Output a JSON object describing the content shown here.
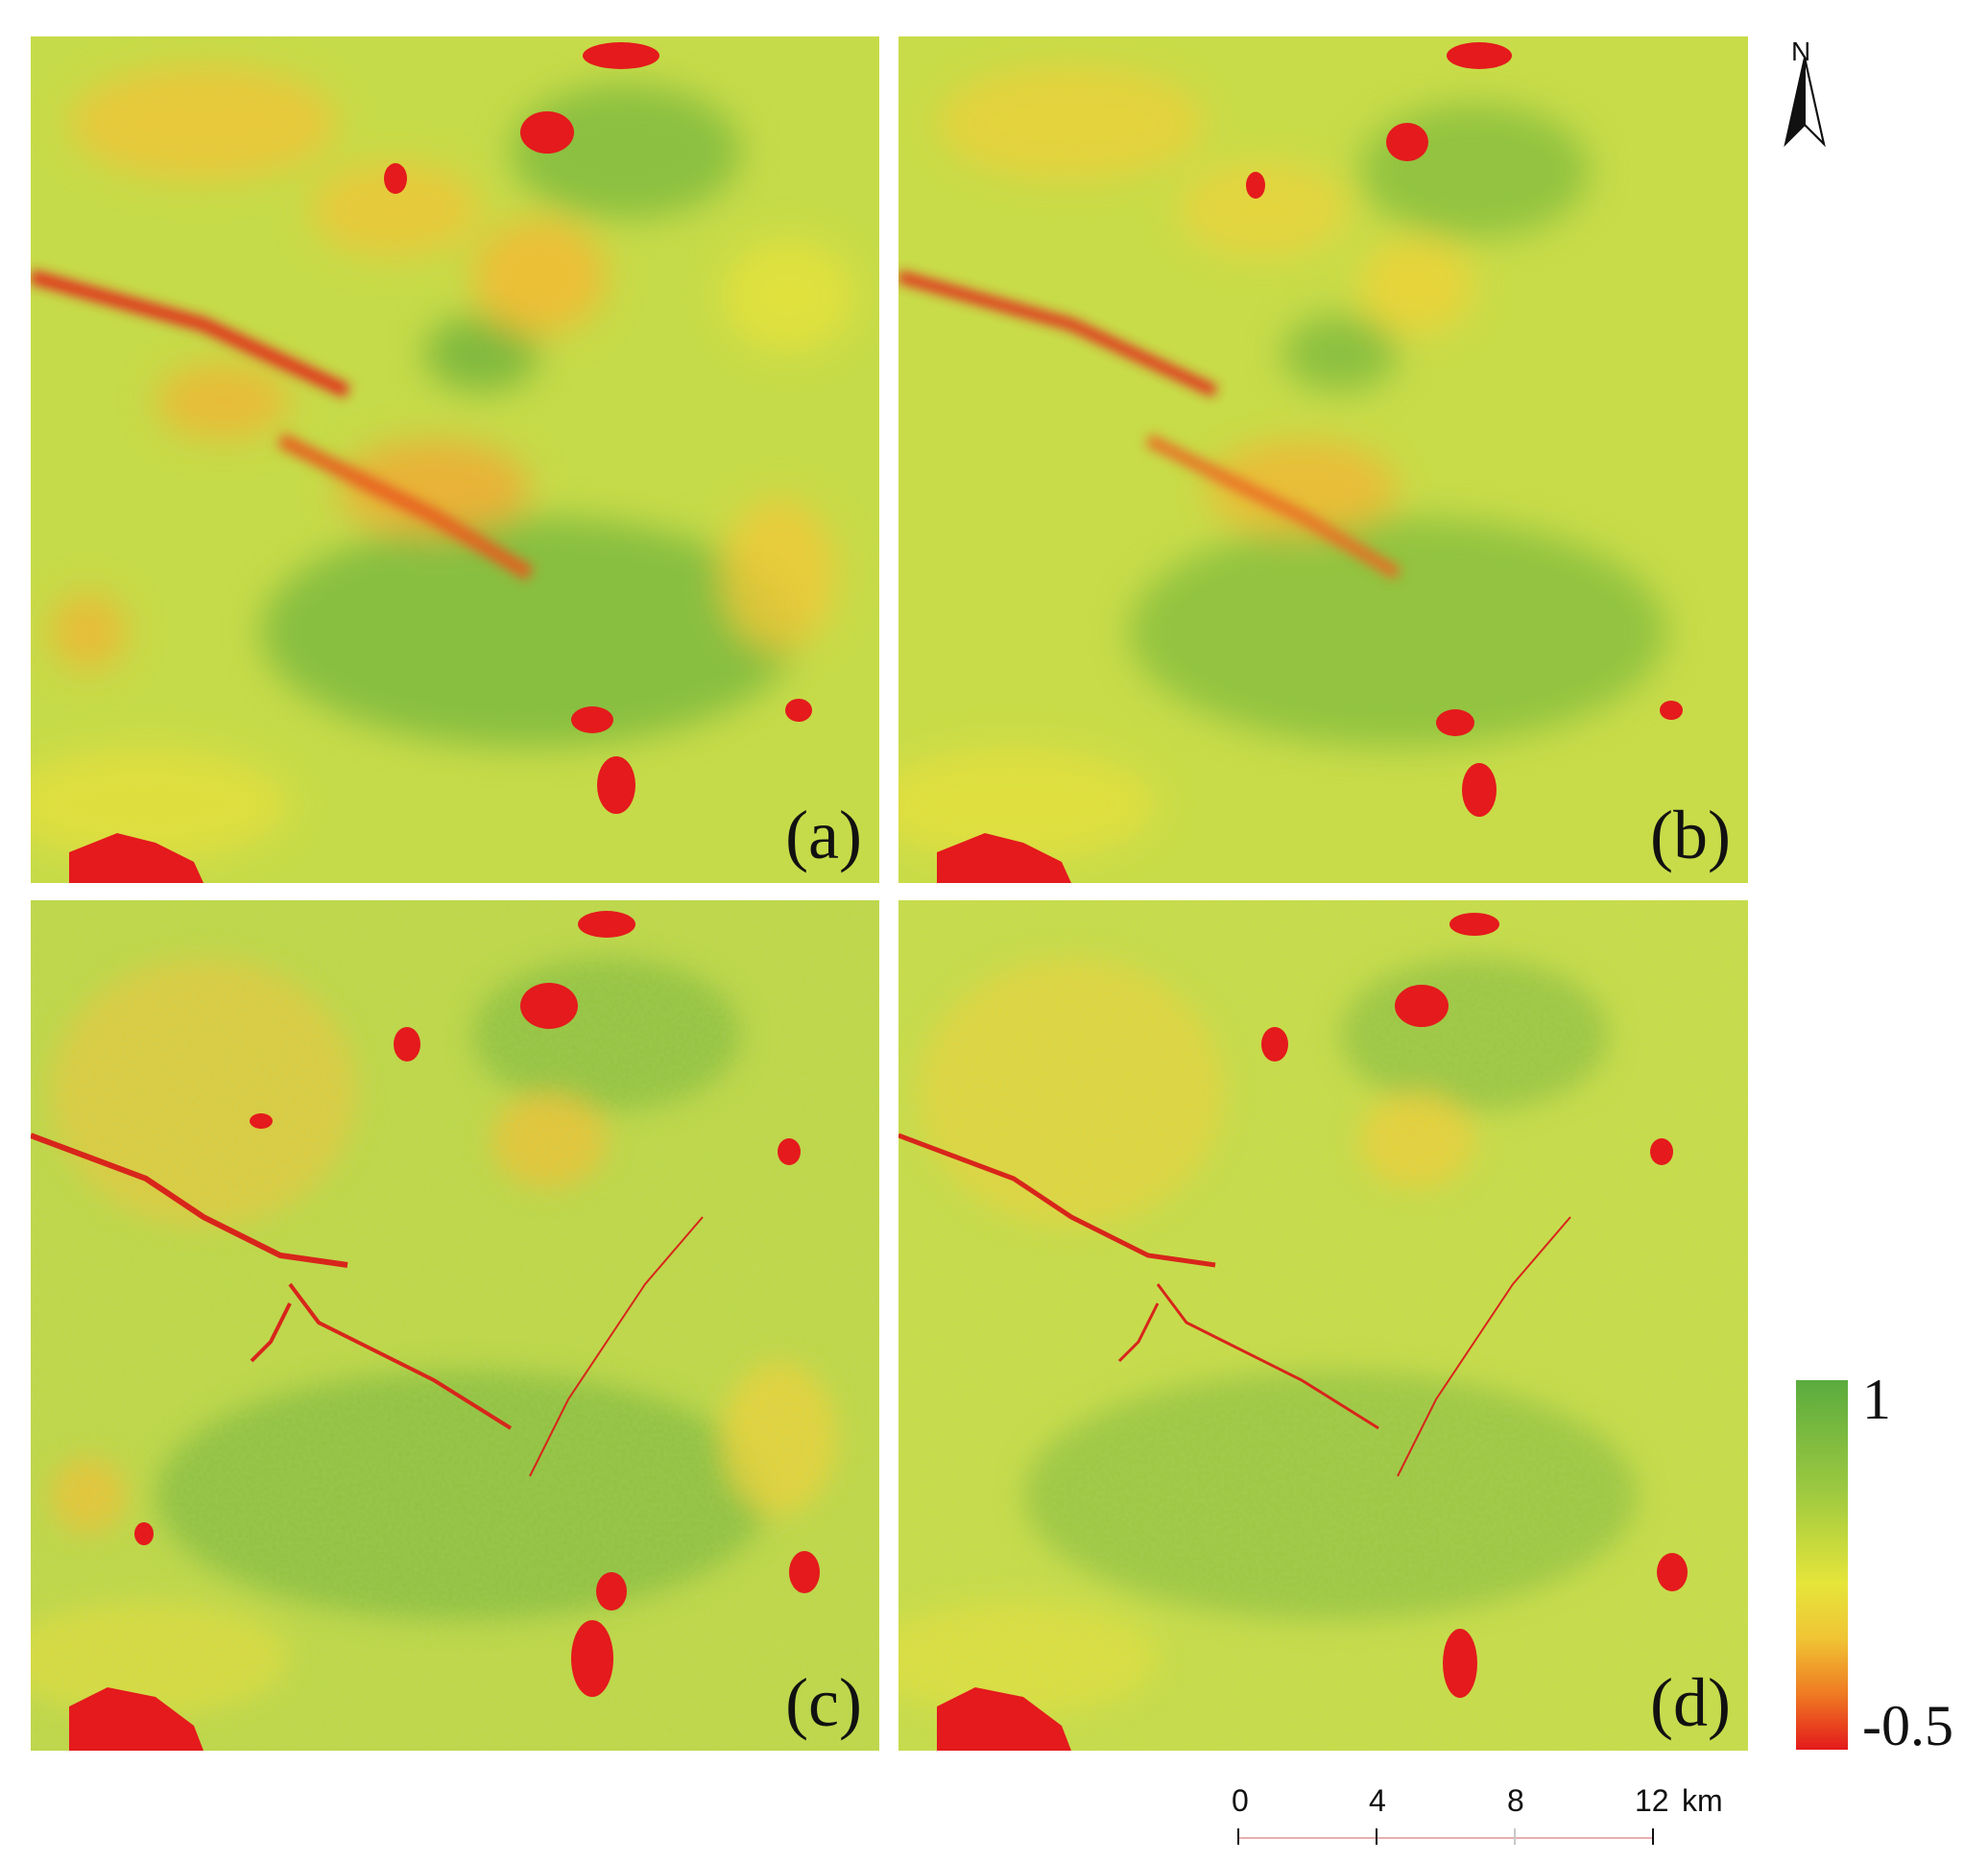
{
  "panels": [
    {
      "id": "a",
      "label": "(a)"
    },
    {
      "id": "b",
      "label": "(b)"
    },
    {
      "id": "c",
      "label": "(c)"
    },
    {
      "id": "d",
      "label": "(d)"
    }
  ],
  "north_arrow": {
    "letter": "N",
    "icon": "north-arrow-icon"
  },
  "legend": {
    "max_label": "1",
    "min_label": "-0.5",
    "colors": [
      "#5aab3e",
      "#e6e53a",
      "#e41a1c"
    ]
  },
  "scale_bar": {
    "ticks": [
      "0",
      "4",
      "8",
      "12"
    ],
    "unit": "km"
  }
}
